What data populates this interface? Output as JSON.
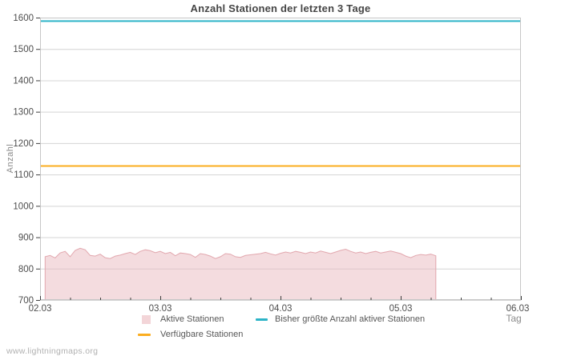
{
  "page": {
    "title": "Anzahl Stationen der letzten 3 Tage",
    "watermark": "www.lightningmaps.org"
  },
  "colors": {
    "title_text": "#454545",
    "tick_label": "#4d4d4d",
    "axis_title": "#8a8a8a",
    "grid": "#d4d4d4",
    "plot_border": "#c6c6c6",
    "tick_mark": "#3f3f3f",
    "active_fill": "#e9bac0",
    "active_edge": "#e2a7ae",
    "active_legend_swatch": "#f3d5d8",
    "max_active_line": "#2cb3c7",
    "available_line": "#fbad1f",
    "legend_text": "#575757",
    "watermark_text": "#b1b1b1"
  },
  "chart_data": {
    "type": "area",
    "title": "Anzahl Stationen der letzten 3 Tage",
    "xlabel": "Tag",
    "ylabel": "Anzahl",
    "grid": true,
    "legend_position": "bottom",
    "ylim": [
      700,
      1600
    ],
    "y_ticks": [
      700,
      800,
      900,
      1000,
      1100,
      1200,
      1300,
      1400,
      1500,
      1600
    ],
    "xlim_hours": [
      0,
      96
    ],
    "x_ticks": [
      {
        "label": "02.03",
        "hour": 0
      },
      {
        "label": "03.03",
        "hour": 24
      },
      {
        "label": "04.03",
        "hour": 48
      },
      {
        "label": "05.03",
        "hour": 72
      },
      {
        "label": "06.03",
        "hour": 96
      }
    ],
    "x_minor_tick_step_hours": 6,
    "x_unit": "hours since 02.03 00:00",
    "series": [
      {
        "name": "Aktive Stationen",
        "type": "area",
        "color": "#e9bac0",
        "edge_color": "#e2a7ae",
        "start_hour": 1,
        "step_hours": 1,
        "values": [
          838,
          842,
          834,
          850,
          855,
          838,
          858,
          865,
          860,
          842,
          840,
          846,
          835,
          832,
          840,
          843,
          848,
          852,
          845,
          855,
          860,
          857,
          851,
          855,
          848,
          852,
          841,
          850,
          848,
          845,
          836,
          848,
          845,
          840,
          832,
          838,
          848,
          846,
          838,
          836,
          842,
          844,
          846,
          848,
          852,
          847,
          843,
          849,
          853,
          850,
          855,
          852,
          848,
          853,
          850,
          856,
          852,
          848,
          853,
          858,
          862,
          855,
          850,
          853,
          848,
          852,
          855,
          850,
          853,
          856,
          852,
          848,
          840,
          835,
          842,
          845,
          843,
          846,
          841
        ]
      },
      {
        "name": "Bisher größte Anzahl aktiver Stationen",
        "type": "line",
        "color": "#2cb3c7",
        "value": 1589,
        "span_hours": [
          0,
          96
        ]
      },
      {
        "name": "Verfügbare Stationen",
        "type": "line",
        "color": "#fbad1f",
        "value": 1127,
        "span_hours": [
          0,
          96
        ]
      }
    ]
  }
}
